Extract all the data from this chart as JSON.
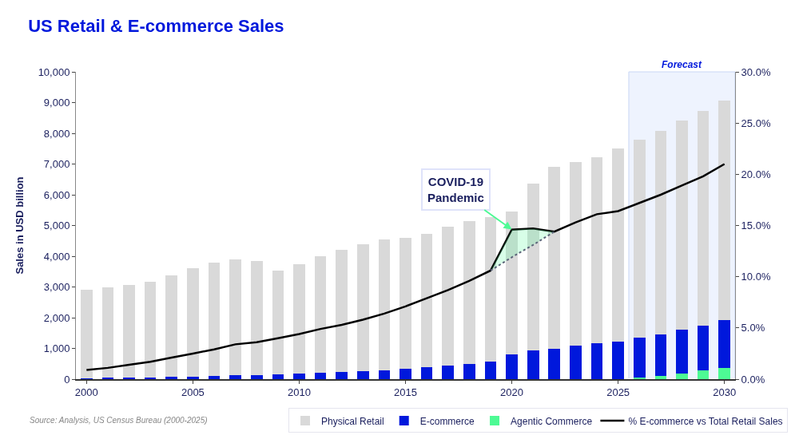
{
  "chart_data": {
    "type": "bar",
    "title": "US Retail & E-commerce Sales",
    "ylabel": "Sales in USD billion",
    "stacked": true,
    "x": [
      2000,
      2001,
      2002,
      2003,
      2004,
      2005,
      2006,
      2007,
      2008,
      2009,
      2010,
      2011,
      2012,
      2013,
      2014,
      2015,
      2016,
      2017,
      2018,
      2019,
      2020,
      2021,
      2022,
      2023,
      2024,
      2025,
      2026,
      2027,
      2028,
      2029,
      2030
    ],
    "series": [
      {
        "name": "Agentic Commerce",
        "color": "#4dfa94",
        "values": [
          0,
          0,
          0,
          0,
          0,
          0,
          0,
          0,
          0,
          0,
          0,
          0,
          0,
          0,
          0,
          0,
          0,
          0,
          0,
          0,
          0,
          0,
          0,
          0,
          0,
          0,
          50,
          110,
          190,
          290,
          370
        ]
      },
      {
        "name": "E-commerce",
        "color": "#0018dc",
        "values": [
          30,
          40,
          50,
          60,
          70,
          90,
          110,
          140,
          140,
          150,
          170,
          200,
          230,
          260,
          290,
          330,
          380,
          440,
          500,
          560,
          800,
          930,
          1000,
          1080,
          1160,
          1230,
          1290,
          1350,
          1420,
          1460,
          1540
        ]
      },
      {
        "name": "Physical Retail",
        "color": "#d9d9d9",
        "values": [
          2870,
          2950,
          3010,
          3110,
          3300,
          3510,
          3690,
          3760,
          3700,
          3380,
          3560,
          3810,
          3980,
          4120,
          4250,
          4280,
          4350,
          4510,
          4650,
          4720,
          4660,
          5430,
          5900,
          5990,
          6060,
          6270,
          6450,
          6630,
          6810,
          6990,
          7150
        ]
      },
      {
        "name": "% E-commerce vs Total Retail Sales",
        "type": "line",
        "axis": "y2",
        "color": "#000000",
        "values": [
          0.9,
          1.1,
          1.4,
          1.7,
          2.1,
          2.5,
          2.9,
          3.4,
          3.6,
          4.0,
          4.4,
          4.9,
          5.3,
          5.8,
          6.4,
          7.1,
          7.9,
          8.7,
          9.6,
          10.6,
          14.6,
          14.7,
          14.4,
          15.3,
          16.1,
          16.4,
          17.2,
          18.0,
          18.9,
          19.8,
          21.0
        ]
      },
      {
        "type": "line",
        "axis": "y2",
        "color": "#5a6478",
        "line_style": "dotted",
        "x": [
          2019,
          2020,
          2021,
          2022
        ],
        "values": [
          10.6,
          11.9,
          13.1,
          14.4
        ],
        "lower": [
          10.6,
          11.9,
          13.1,
          14.4
        ],
        "upper": [
          10.6,
          14.6,
          14.7,
          14.4
        ]
      }
    ],
    "xlim": [
      1999.5,
      2030.5
    ],
    "xticks": [
      2000,
      2005,
      2010,
      2015,
      2020,
      2025,
      2030
    ],
    "ylim": [
      0,
      10000
    ],
    "yticks": [
      {
        "value": 0,
        "label": "0"
      },
      {
        "value": 1000,
        "label": "1,000"
      },
      {
        "value": 2000,
        "label": "2,000"
      },
      {
        "value": 3000,
        "label": "3,000"
      },
      {
        "value": 4000,
        "label": "4,000"
      },
      {
        "value": 5000,
        "label": "5,000"
      },
      {
        "value": 6000,
        "label": "6,000"
      },
      {
        "value": 7000,
        "label": "7,000"
      },
      {
        "value": 8000,
        "label": "8,000"
      },
      {
        "value": 9000,
        "label": "9,000"
      },
      {
        "value": 10000,
        "label": "10,000"
      }
    ],
    "y2lim": [
      0,
      30
    ],
    "y2ticks": [
      {
        "value": 0,
        "label": "0.0%"
      },
      {
        "value": 5,
        "label": "5.0%"
      },
      {
        "value": 10,
        "label": "10.0%"
      },
      {
        "value": 15,
        "label": "15.0%"
      },
      {
        "value": 20,
        "label": "20.0%"
      },
      {
        "value": 25,
        "label": "25.0%"
      },
      {
        "value": 30,
        "label": "30.0%"
      }
    ],
    "bands": [
      {
        "axis": "x",
        "from": 2025.5,
        "to": 2030.5,
        "label": "Forecast",
        "color": "#eef3fe"
      }
    ],
    "annotations": [
      {
        "text": "COVID-19\nPandemic",
        "x": 2020,
        "y": 4870
      },
      "Source: Analysis, US Census Bureau (2000-2025)"
    ],
    "marker": "none",
    "grid": false,
    "legend": "bottom"
  }
}
